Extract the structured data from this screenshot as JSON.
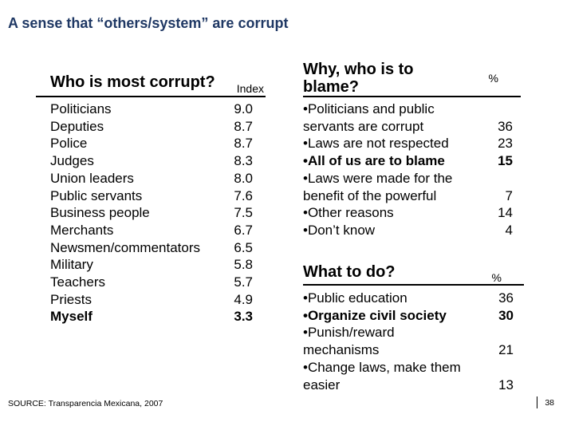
{
  "slide": {
    "title": "A sense that “others/system” are corrupt",
    "source": "SOURCE: Transparencia Mexicana, 2007",
    "page_number": "38"
  },
  "colors": {
    "title_navy": "#1F3864",
    "text": "#000000",
    "rule": "#000000"
  },
  "corrupt_table": {
    "heading": "Who is most corrupt?",
    "value_header": "Index",
    "rows": [
      {
        "label": "Politicians",
        "value": "9.0",
        "bold": false
      },
      {
        "label": "Deputies",
        "value": "8.7",
        "bold": false
      },
      {
        "label": "Police",
        "value": "8.7",
        "bold": false
      },
      {
        "label": "Judges",
        "value": "8.3",
        "bold": false
      },
      {
        "label": "Union leaders",
        "value": "8.0",
        "bold": false
      },
      {
        "label": "Public servants",
        "value": "7.6",
        "bold": false
      },
      {
        "label": "Business people",
        "value": "7.5",
        "bold": false
      },
      {
        "label": "Merchants",
        "value": "6.7",
        "bold": false
      },
      {
        "label": "Newsmen/commentators",
        "value": "6.5",
        "bold": false
      },
      {
        "label": "Military",
        "value": "5.8",
        "bold": false
      },
      {
        "label": "Teachers",
        "value": "5.7",
        "bold": false
      },
      {
        "label": "Priests",
        "value": "4.9",
        "bold": false
      },
      {
        "label": "Myself",
        "value": "3.3",
        "bold": true
      }
    ]
  },
  "blame_table": {
    "heading": "Why, who is to\nblame?",
    "value_header": "%",
    "rows": [
      {
        "label": "•Politicians and public\nservants are corrupt",
        "value": "36",
        "bold": false
      },
      {
        "label": "•Laws are not respected",
        "value": "23",
        "bold": false
      },
      {
        "label": "•All of us are to blame",
        "value": "15",
        "bold": true
      },
      {
        "label": "•Laws were made for the\nbenefit of the powerful",
        "value": "7",
        "bold": false
      },
      {
        "label": "•Other reasons",
        "value": "14",
        "bold": false
      },
      {
        "label": "•Don’t know",
        "value": "4",
        "bold": false
      }
    ]
  },
  "todo_table": {
    "heading": "What to do?",
    "value_header": "%",
    "rows": [
      {
        "label": "•Public education",
        "value": "36",
        "bold": false
      },
      {
        "label": "•Organize civil society",
        "value": "30",
        "bold": true
      },
      {
        "label": "•Punish/reward\nmechanisms",
        "value": "21",
        "bold": false
      },
      {
        "label": "•Change laws, make them\neasier",
        "value": "13",
        "bold": false
      }
    ]
  }
}
